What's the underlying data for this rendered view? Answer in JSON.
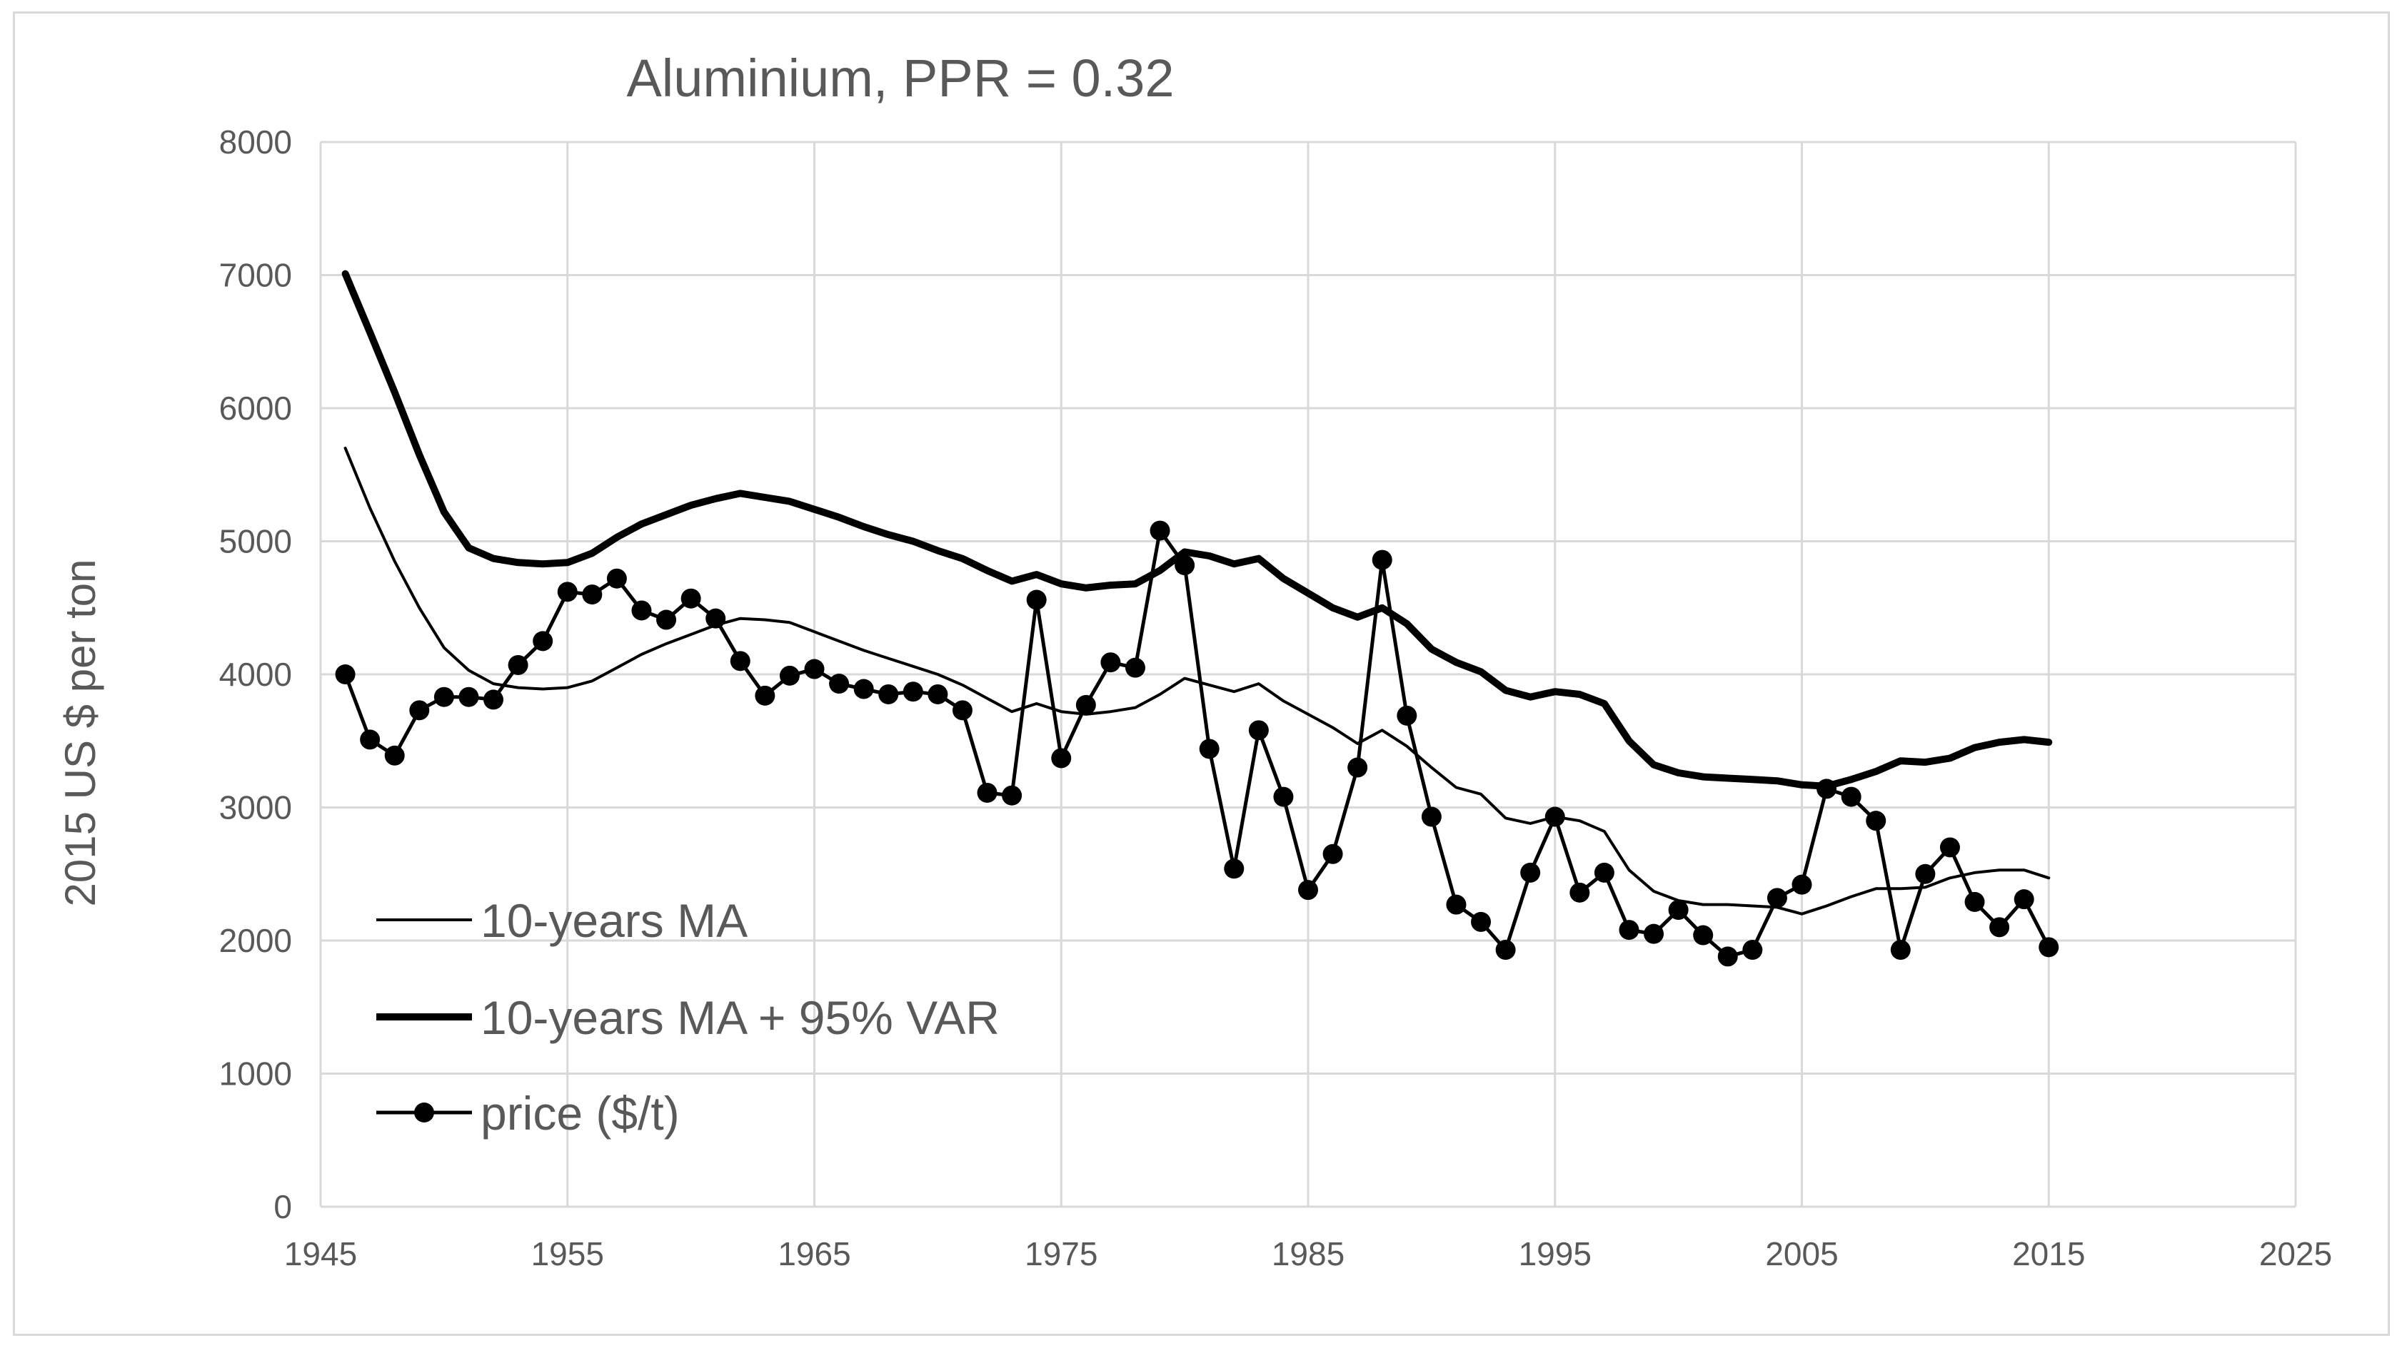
{
  "chart_data": {
    "type": "line",
    "title": "Aluminium, PPR  = 0.32",
    "xlabel": "",
    "ylabel": "2015 US $ per ton",
    "xlim": [
      1945,
      2025
    ],
    "ylim": [
      0,
      8000
    ],
    "xticks": [
      1945,
      1955,
      1965,
      1975,
      1985,
      1995,
      2005,
      2015,
      2025
    ],
    "yticks": [
      0,
      1000,
      2000,
      3000,
      4000,
      5000,
      6000,
      7000,
      8000
    ],
    "grid": true,
    "legend_position": "bottom-left",
    "series": [
      {
        "name": "10-years MA",
        "style": "thin-line",
        "color": "#000000",
        "x": [
          1946,
          1947,
          1948,
          1949,
          1950,
          1951,
          1952,
          1953,
          1954,
          1955,
          1956,
          1957,
          1958,
          1959,
          1960,
          1961,
          1962,
          1963,
          1964,
          1965,
          1966,
          1967,
          1968,
          1969,
          1970,
          1971,
          1972,
          1973,
          1974,
          1975,
          1976,
          1977,
          1978,
          1979,
          1980,
          1981,
          1982,
          1983,
          1984,
          1985,
          1986,
          1987,
          1988,
          1989,
          1990,
          1991,
          1992,
          1993,
          1994,
          1995,
          1996,
          1997,
          1998,
          1999,
          2000,
          2001,
          2002,
          2003,
          2004,
          2005,
          2006,
          2007,
          2008,
          2009,
          2010,
          2011,
          2012,
          2013,
          2014,
          2015
        ],
        "values": [
          5700,
          5250,
          4850,
          4500,
          4200,
          4030,
          3930,
          3900,
          3890,
          3900,
          3950,
          4050,
          4150,
          4230,
          4300,
          4370,
          4420,
          4410,
          4390,
          4320,
          4250,
          4180,
          4120,
          4060,
          4000,
          3920,
          3820,
          3720,
          3780,
          3720,
          3700,
          3720,
          3750,
          3850,
          3970,
          3920,
          3870,
          3930,
          3800,
          3700,
          3600,
          3480,
          3580,
          3460,
          3300,
          3150,
          3100,
          2920,
          2880,
          2930,
          2900,
          2820,
          2530,
          2370,
          2300,
          2270,
          2270,
          2260,
          2250,
          2200,
          2260,
          2330,
          2390,
          2390,
          2400,
          2470,
          2510,
          2530,
          2530,
          2470
        ]
      },
      {
        "name": "10-years MA + 95% VAR",
        "style": "thick-line",
        "color": "#000000",
        "x": [
          1946,
          1947,
          1948,
          1949,
          1950,
          1951,
          1952,
          1953,
          1954,
          1955,
          1956,
          1957,
          1958,
          1959,
          1960,
          1961,
          1962,
          1963,
          1964,
          1965,
          1966,
          1967,
          1968,
          1969,
          1970,
          1971,
          1972,
          1973,
          1974,
          1975,
          1976,
          1977,
          1978,
          1979,
          1980,
          1981,
          1982,
          1983,
          1984,
          1985,
          1986,
          1987,
          1988,
          1989,
          1990,
          1991,
          1992,
          1993,
          1994,
          1995,
          1996,
          1997,
          1998,
          1999,
          2000,
          2001,
          2002,
          2003,
          2004,
          2005,
          2006,
          2007,
          2008,
          2009,
          2010,
          2011,
          2012,
          2013,
          2014,
          2015
        ],
        "values": [
          7010,
          6570,
          6120,
          5650,
          5220,
          4950,
          4870,
          4840,
          4830,
          4840,
          4910,
          5030,
          5130,
          5200,
          5270,
          5320,
          5360,
          5330,
          5300,
          5240,
          5180,
          5110,
          5050,
          5000,
          4930,
          4870,
          4780,
          4700,
          4750,
          4680,
          4650,
          4670,
          4680,
          4780,
          4920,
          4890,
          4830,
          4870,
          4720,
          4610,
          4500,
          4430,
          4500,
          4380,
          4190,
          4090,
          4020,
          3880,
          3830,
          3870,
          3850,
          3780,
          3500,
          3320,
          3260,
          3230,
          3220,
          3210,
          3200,
          3170,
          3160,
          3210,
          3270,
          3350,
          3340,
          3370,
          3450,
          3490,
          3510,
          3490
        ]
      },
      {
        "name": "price ($/t)",
        "style": "line-with-markers",
        "color": "#000000",
        "x": [
          1946,
          1947,
          1948,
          1949,
          1950,
          1951,
          1952,
          1953,
          1954,
          1955,
          1956,
          1957,
          1958,
          1959,
          1960,
          1961,
          1962,
          1963,
          1964,
          1965,
          1966,
          1967,
          1968,
          1969,
          1970,
          1971,
          1972,
          1973,
          1974,
          1975,
          1976,
          1977,
          1978,
          1979,
          1980,
          1981,
          1982,
          1983,
          1984,
          1985,
          1986,
          1987,
          1988,
          1989,
          1990,
          1991,
          1992,
          1993,
          1994,
          1995,
          1996,
          1997,
          1998,
          1999,
          2000,
          2001,
          2002,
          2003,
          2004,
          2005,
          2006,
          2007,
          2008,
          2009,
          2010,
          2011,
          2012,
          2013,
          2014,
          2015
        ],
        "values": [
          4000,
          3510,
          3390,
          3730,
          3830,
          3830,
          3810,
          4070,
          4250,
          4620,
          4600,
          4720,
          4480,
          4410,
          4570,
          4420,
          4100,
          3840,
          3990,
          4040,
          3930,
          3890,
          3850,
          3870,
          3850,
          3730,
          3110,
          3090,
          4560,
          3370,
          3770,
          4090,
          4050,
          5080,
          4820,
          3440,
          2540,
          3580,
          3080,
          2380,
          2650,
          3300,
          4860,
          3690,
          2930,
          2270,
          2140,
          1930,
          2510,
          2930,
          2360,
          2510,
          2080,
          2050,
          2230,
          2040,
          1880,
          1930,
          2320,
          2420,
          3140,
          3080,
          2900,
          1930,
          2500,
          2700,
          2290,
          2100,
          2310,
          1950
        ]
      }
    ]
  }
}
